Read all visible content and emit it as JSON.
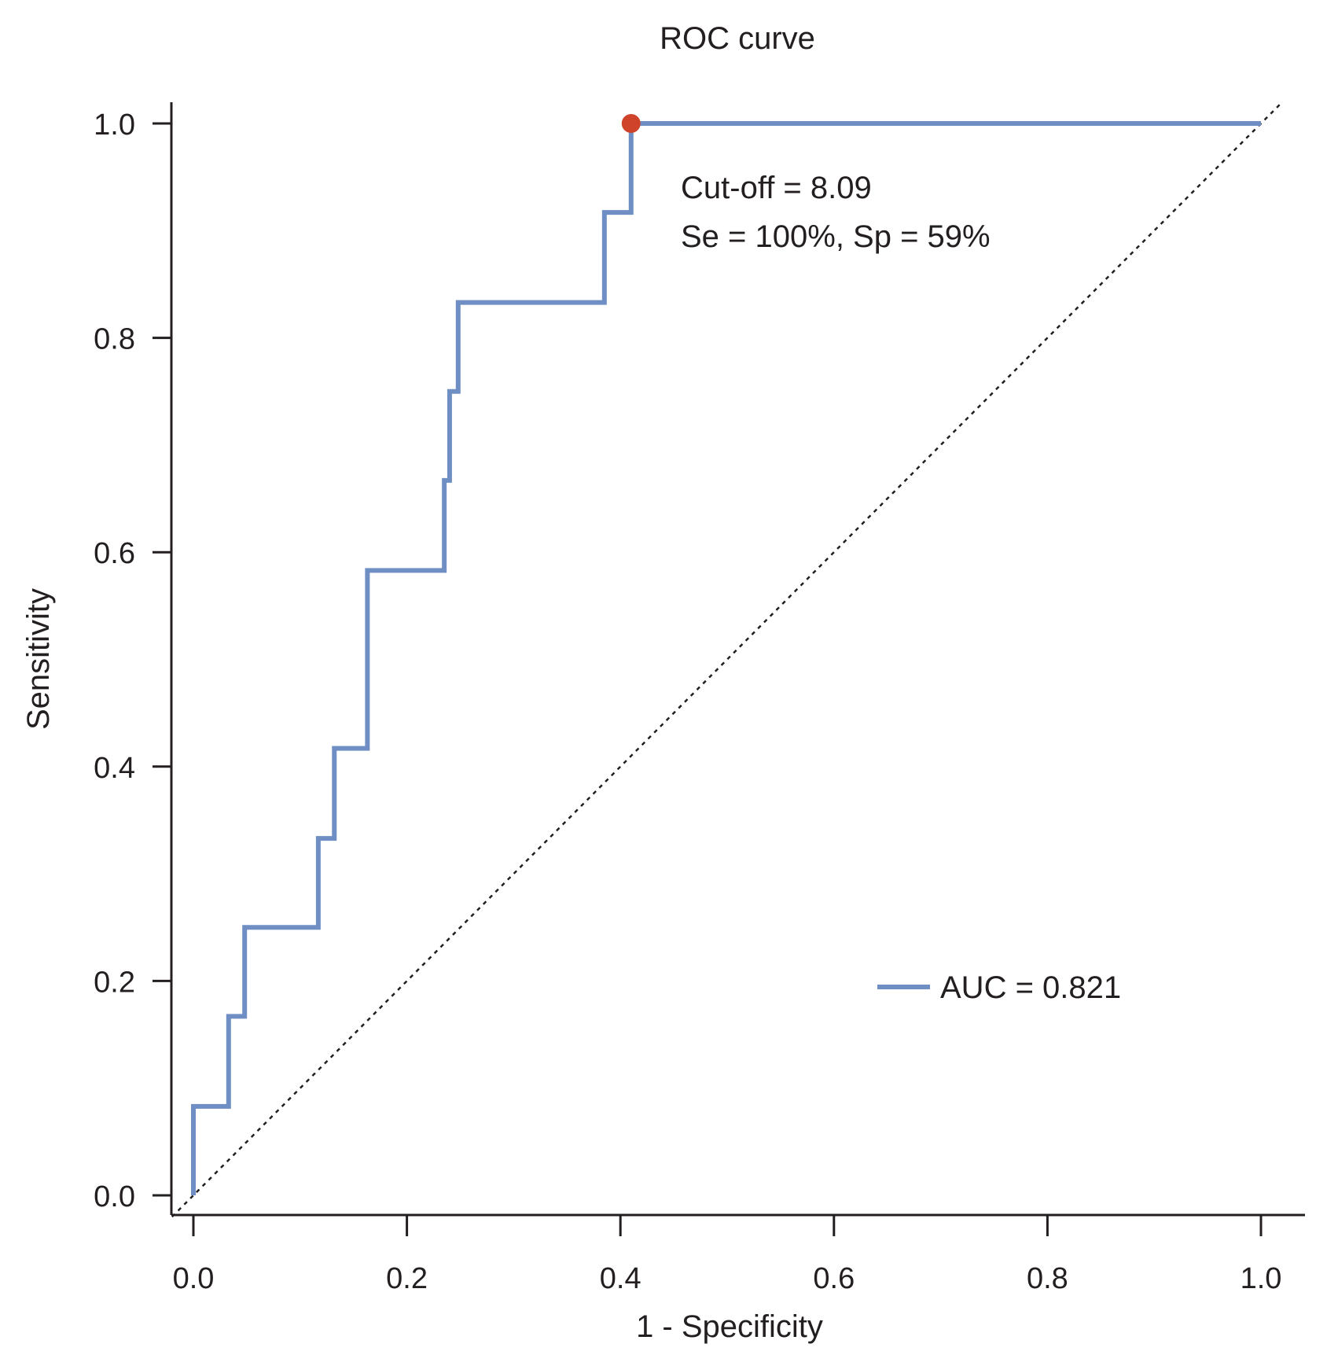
{
  "chart_data": {
    "type": "line",
    "title": "ROC curve",
    "xlabel": "1 - Specificity",
    "ylabel": "Sensitivity",
    "xlim": [
      0.0,
      1.0
    ],
    "ylim": [
      0.0,
      1.0
    ],
    "xticks": [
      "0.0",
      "0.2",
      "0.4",
      "0.6",
      "0.8",
      "1.0"
    ],
    "yticks": [
      "0.0",
      "0.2",
      "0.4",
      "0.6",
      "0.8",
      "1.0"
    ],
    "grid": false,
    "legend_position": "bottom-right",
    "series": [
      {
        "name": "AUC = 0.821",
        "color": "#6f8fc4",
        "step": true,
        "x": [
          0.0,
          0.0,
          0.033,
          0.033,
          0.048,
          0.048,
          0.117,
          0.117,
          0.132,
          0.132,
          0.163,
          0.163,
          0.235,
          0.235,
          0.24,
          0.24,
          0.248,
          0.248,
          0.385,
          0.385,
          0.41,
          0.41,
          1.0
        ],
        "y": [
          0.0,
          0.083,
          0.083,
          0.167,
          0.167,
          0.25,
          0.25,
          0.333,
          0.333,
          0.417,
          0.417,
          0.583,
          0.583,
          0.667,
          0.667,
          0.75,
          0.75,
          0.833,
          0.833,
          0.917,
          0.917,
          1.0,
          1.0
        ]
      }
    ],
    "reference_line": {
      "style": "dotted",
      "color": "#231f20",
      "x": [
        0.0,
        1.0
      ],
      "y": [
        0.0,
        1.0
      ]
    },
    "cutoff_point": {
      "x": 0.41,
      "y": 1.0,
      "color": "#d0432b"
    },
    "annotations": [
      "Cut-off = 8.09",
      "Se = 100%, Sp = 59%"
    ]
  }
}
